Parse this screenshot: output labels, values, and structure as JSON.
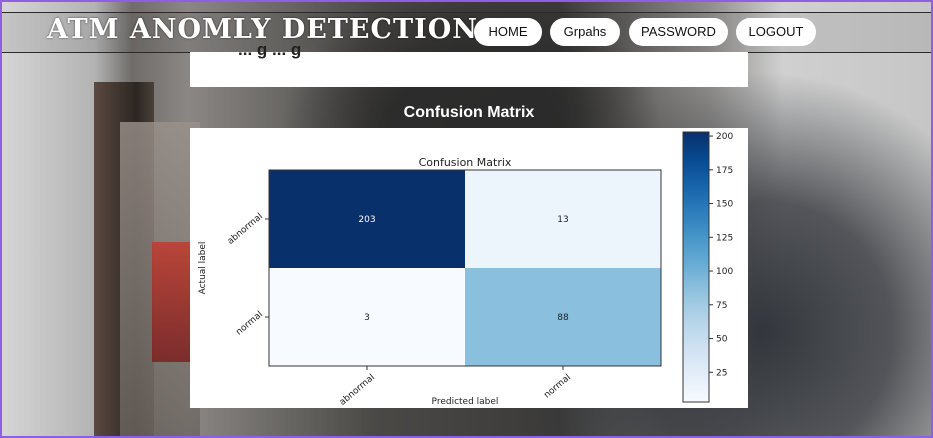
{
  "header": {
    "brand": "ATM ANOMLY DETECTION",
    "nav": [
      {
        "label": "HOME"
      },
      {
        "label": "Grpahs"
      },
      {
        "label": "PASSWORD"
      },
      {
        "label": "LOGOUT"
      }
    ]
  },
  "top_card": {
    "partial_text": "... g ... g"
  },
  "section": {
    "title": "Confusion Matrix"
  },
  "colors": {
    "page_border": "#8d5fe8",
    "cmap_dark": "#08306b",
    "cmap_light": "#f7fbff"
  },
  "chart_data": {
    "type": "heatmap",
    "title": "Confusion Matrix",
    "xlabel": "Predicted label",
    "ylabel": "Actual label",
    "x_categories": [
      "abnormal",
      "normal"
    ],
    "y_categories": [
      "abnormal",
      "normal"
    ],
    "values": [
      [
        203,
        13
      ],
      [
        3,
        88
      ]
    ],
    "colorbar": {
      "ticks": [
        25,
        50,
        75,
        100,
        125,
        150,
        175,
        200
      ],
      "range": [
        3,
        203
      ],
      "colormap": "Blues"
    },
    "grid": false
  }
}
